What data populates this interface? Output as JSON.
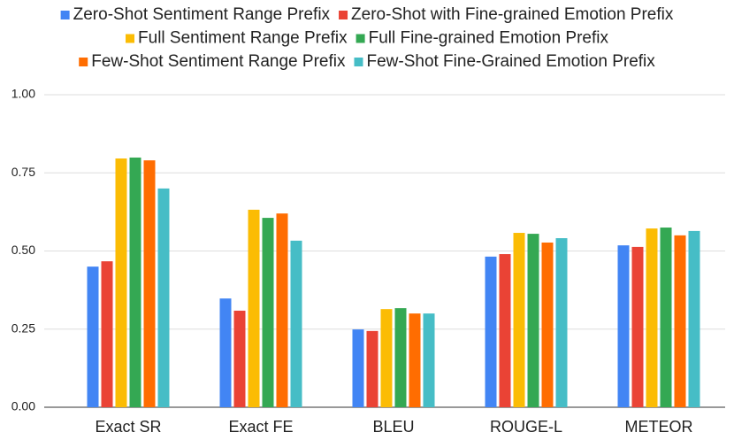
{
  "chart_data": {
    "type": "bar",
    "categories": [
      "Exact SR",
      "Exact FE",
      "BLEU",
      "ROUGE-L",
      "METEOR"
    ],
    "series": [
      {
        "name": "Zero-Shot Sentiment Range Prefix",
        "color": "#4285f4",
        "values": [
          0.45,
          0.348,
          0.249,
          0.482,
          0.518
        ]
      },
      {
        "name": "Zero-Shot with Fine-grained Emotion Prefix",
        "color": "#ea4335",
        "values": [
          0.467,
          0.309,
          0.244,
          0.49,
          0.513
        ]
      },
      {
        "name": "Full Sentiment Range Prefix",
        "color": "#fbbc04",
        "values": [
          0.796,
          0.632,
          0.314,
          0.558,
          0.572
        ]
      },
      {
        "name": "Full Fine-grained Emotion Prefix",
        "color": "#34a853",
        "values": [
          0.799,
          0.606,
          0.317,
          0.555,
          0.575
        ]
      },
      {
        "name": "Few-Shot Sentiment Range Prefix",
        "color": "#ff6d01",
        "values": [
          0.79,
          0.62,
          0.3,
          0.527,
          0.55
        ]
      },
      {
        "name": "Few-Shot Fine-Grained Emotion Prefix",
        "color": "#46bdc6",
        "values": [
          0.7,
          0.533,
          0.3,
          0.541,
          0.564
        ]
      }
    ],
    "ylim": [
      0,
      1
    ],
    "yticks": [
      {
        "value": 0,
        "label": "0.00"
      },
      {
        "value": 0.25,
        "label": "0.25"
      },
      {
        "value": 0.5,
        "label": "0.50"
      },
      {
        "value": 0.75,
        "label": "0.75"
      },
      {
        "value": 1,
        "label": "1.00"
      }
    ],
    "grid": true,
    "legend": "top"
  }
}
